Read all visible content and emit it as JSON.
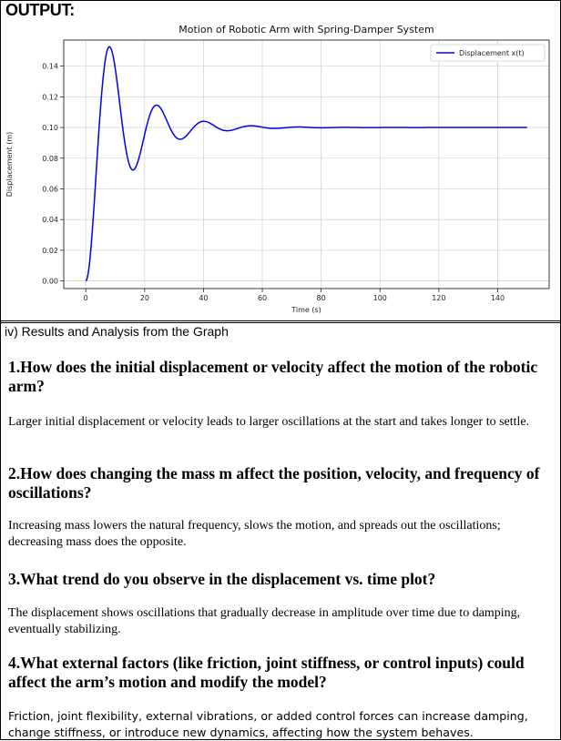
{
  "header": {
    "output_label": "OUTPUT:"
  },
  "chart_data": {
    "type": "line",
    "title": "Motion of Robotic Arm with Spring-Damper System",
    "xlabel": "Time (s)",
    "ylabel": "Displacement (m)",
    "xlim": [
      -7.5,
      157.5
    ],
    "ylim": [
      -0.005,
      0.157
    ],
    "x_ticks": [
      0,
      20,
      40,
      60,
      80,
      100,
      120,
      140
    ],
    "y_ticks": [
      0.0,
      0.02,
      0.04,
      0.06,
      0.08,
      0.1,
      0.12,
      0.14
    ],
    "y_tick_labels": [
      "0.00",
      "0.02",
      "0.04",
      "0.06",
      "0.08",
      "0.10",
      "0.12",
      "0.14"
    ],
    "grid": true,
    "legend_position": "top-right",
    "series": [
      {
        "name": "Displacement x(t)",
        "color": "#0000ee",
        "model": {
          "steady": 0.1,
          "zeta": 0.2,
          "omega_n": 0.4,
          "t_start": 0,
          "t_end": 150
        }
      }
    ]
  },
  "results": {
    "heading": "iv) Results and Analysis from the Graph",
    "items": [
      {
        "question": "1.How does the initial displacement or velocity affect the motion of the robotic arm?",
        "answer": "Larger initial displacement or velocity leads to larger oscillations at the start and takes longer to settle."
      },
      {
        "question": "2.How does changing the mass m affect the position, velocity, and frequency of oscillations?",
        "answer": "Increasing mass lowers the natural frequency, slows the motion, and spreads out the oscillations; decreasing mass does the opposite."
      },
      {
        "question": "3.What trend do you observe in the displacement vs. time plot?",
        "answer": "The displacement shows oscillations that gradually decrease in amplitude over time due to damping, eventually stabilizing."
      },
      {
        "question": "4.What external factors (like friction, joint stiffness, or control inputs) could affect the arm’s motion and modify the model?",
        "answer": "Friction, joint flexibility, external vibrations, or added control forces can increase damping, change stiffness, or introduce new dynamics, affecting how the system behaves."
      }
    ]
  }
}
